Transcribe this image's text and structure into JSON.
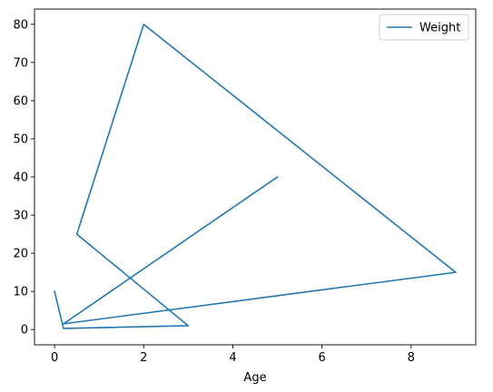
{
  "chart_data": {
    "type": "line",
    "xlabel": "Age",
    "ylabel": "",
    "xlim": [
      -0.45,
      9.45
    ],
    "ylim": [
      -4.0,
      84.0
    ],
    "x_ticks": [
      0,
      2,
      4,
      6,
      8
    ],
    "y_ticks": [
      0,
      10,
      20,
      30,
      40,
      50,
      60,
      70,
      80
    ],
    "grid": false,
    "legend_position": "top-right",
    "series": [
      {
        "name": "Weight",
        "color": "#1f77b4",
        "x": [
          0,
          0.2,
          3,
          0.5,
          2,
          9,
          0.2,
          5
        ],
        "y": [
          10,
          0.3,
          1,
          25,
          80,
          15,
          1.5,
          40
        ]
      }
    ]
  }
}
